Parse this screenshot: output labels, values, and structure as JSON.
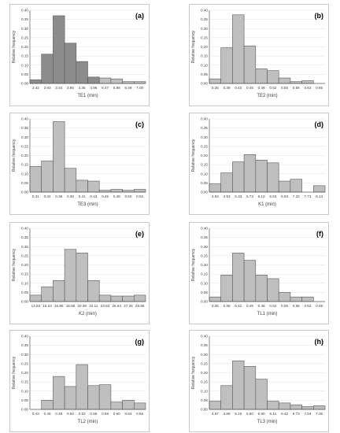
{
  "colors": {
    "bar": "#bfbfbf",
    "bar_dark": "#8c8c8c",
    "edge": "#595959"
  },
  "chart_data": [
    {
      "type": "bar",
      "tag": "(a)",
      "xlabel": "TE1 (min)",
      "ylabel": "Relative frequency",
      "ylim": [
        0,
        0.4
      ],
      "yticks": [
        "0.00",
        "0.05",
        "0.10",
        "0.15",
        "0.20",
        "0.25",
        "0.30",
        "0.35",
        "0.40"
      ],
      "categories": [
        "2.42",
        "2.93",
        "3.44",
        "3.95",
        "4.45",
        "4.96",
        "5.47",
        "5.98",
        "6.49",
        "7.00"
      ],
      "values": [
        0.02,
        0.16,
        0.37,
        0.22,
        0.12,
        0.035,
        0.03,
        0.025,
        0.01,
        0.01
      ],
      "dark_bars": [
        0,
        1,
        2,
        3,
        4,
        5
      ],
      "grid": true
    },
    {
      "type": "bar",
      "tag": "(b)",
      "xlabel": "TE2 (min)",
      "ylabel": "Relative frequency",
      "ylim": [
        0,
        0.4
      ],
      "yticks": [
        "0.00",
        "0.05",
        "0.10",
        "0.15",
        "0.20",
        "0.25",
        "0.30",
        "0.35",
        "0.40"
      ],
      "categories": [
        "0.35",
        "0.38",
        "0.42",
        "0.45",
        "0.48",
        "0.52",
        "0.55",
        "0.58",
        "0.62",
        "0.65"
      ],
      "values": [
        0.025,
        0.195,
        0.375,
        0.205,
        0.08,
        0.07,
        0.03,
        0.01,
        0.015,
        0
      ],
      "dark_bars": [],
      "grid": true
    },
    {
      "type": "bar",
      "tag": "(c)",
      "xlabel": "TE3 (min)",
      "ylabel": "Relative frequency",
      "ylim": [
        0,
        0.4
      ],
      "yticks": [
        "0.00",
        "0.05",
        "0.10",
        "0.15",
        "0.20",
        "0.25",
        "0.30",
        "0.35",
        "0.40"
      ],
      "categories": [
        "0.31",
        "0.34",
        "0.36",
        "0.38",
        "0.41",
        "0.43",
        "0.45",
        "0.48",
        "0.50",
        "0.52"
      ],
      "values": [
        0.14,
        0.17,
        0.385,
        0.13,
        0.065,
        0.06,
        0.01,
        0.015,
        0.01,
        0.015
      ],
      "dark_bars": [],
      "grid": true
    },
    {
      "type": "bar",
      "tag": "(d)",
      "xlabel": "K1 (min)",
      "ylabel": "Relative frequency",
      "ylim": [
        0,
        0.4
      ],
      "yticks": [
        "0.00",
        "0.05",
        "0.10",
        "0.15",
        "0.20",
        "0.25",
        "0.30",
        "0.35",
        "0.40"
      ],
      "categories": [
        "4.53",
        "4.93",
        "5.33",
        "5.73",
        "6.13",
        "6.53",
        "6.93",
        "7.33",
        "7.73",
        "8.13"
      ],
      "values": [
        0.045,
        0.105,
        0.165,
        0.205,
        0.175,
        0.16,
        0.06,
        0.07,
        0,
        0.035
      ],
      "dark_bars": [],
      "grid": true
    },
    {
      "type": "bar",
      "tag": "(e)",
      "xlabel": "K2 (min)",
      "ylabel": "Relative frequency",
      "ylim": [
        0,
        0.4
      ],
      "yticks": [
        "0.00",
        "0.05",
        "0.10",
        "0.15",
        "0.20",
        "0.25",
        "0.30",
        "0.35",
        "0.40"
      ],
      "categories": [
        "13.53",
        "15.24",
        "16.96",
        "18.68",
        "20.39",
        "22.11",
        "23.83",
        "25.54",
        "27.26",
        "28.98"
      ],
      "values": [
        0.035,
        0.08,
        0.115,
        0.285,
        0.265,
        0.115,
        0.035,
        0.03,
        0.03,
        0.035
      ],
      "dark_bars": [],
      "grid": true
    },
    {
      "type": "bar",
      "tag": "(f)",
      "xlabel": "TL1 (min)",
      "ylabel": "Relative frequency",
      "ylim": [
        0,
        0.4
      ],
      "yticks": [
        "0.00",
        "0.05",
        "0.10",
        "0.15",
        "0.20",
        "0.25",
        "0.30",
        "0.35",
        "0.40"
      ],
      "categories": [
        "0.35",
        "0.38",
        "0.42",
        "0.45",
        "0.48",
        "0.52",
        "0.55",
        "0.58",
        "0.62",
        "0.65"
      ],
      "values": [
        0.025,
        0.145,
        0.265,
        0.225,
        0.145,
        0.125,
        0.05,
        0.025,
        0.025,
        0
      ],
      "dark_bars": [],
      "grid": true
    },
    {
      "type": "bar",
      "tag": "(g)",
      "xlabel": "TL2 (min)",
      "ylabel": "Relative frequency",
      "ylim": [
        0,
        0.4
      ],
      "yticks": [
        "0.00",
        "0.05",
        "0.10",
        "0.15",
        "0.20",
        "0.25",
        "0.30",
        "0.35",
        "0.40"
      ],
      "categories": [
        "0.43",
        "0.45",
        "0.48",
        "0.50",
        "0.53",
        "0.55",
        "0.58",
        "0.60",
        "0.63",
        "0.65"
      ],
      "values": [
        0,
        0.05,
        0.18,
        0.125,
        0.245,
        0.13,
        0.135,
        0.04,
        0.05,
        0.035
      ],
      "dark_bars": [],
      "grid": true
    },
    {
      "type": "bar",
      "tag": "(h)",
      "xlabel": "TL3 (min)",
      "ylabel": "Relative frequency",
      "ylim": [
        0,
        0.4
      ],
      "yticks": [
        "0.00",
        "0.05",
        "0.10",
        "0.15",
        "0.20",
        "0.25",
        "0.30",
        "0.35",
        "0.40"
      ],
      "categories": [
        "4.57",
        "4.88",
        "5.19",
        "5.50",
        "5.80",
        "6.11",
        "6.42",
        "6.73",
        "7.04",
        "7.35"
      ],
      "values": [
        0.045,
        0.13,
        0.265,
        0.235,
        0.165,
        0.045,
        0.035,
        0.025,
        0.015,
        0.02
      ],
      "dark_bars": [],
      "grid": true
    }
  ]
}
